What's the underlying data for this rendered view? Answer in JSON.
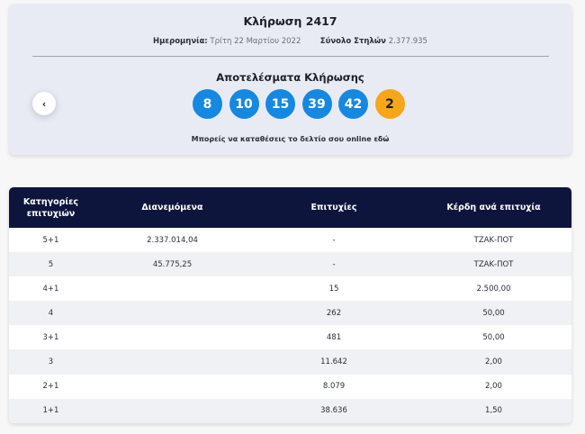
{
  "draw": {
    "title": "Κλήρωση 2417",
    "date_label": "Ημερομηνία:",
    "date_value": "Τρίτη 22 Μαρτίου 2022",
    "columns_label": "Σύνολο Στηλών",
    "columns_value": "2.377.935",
    "results_title": "Αποτελέσματα Κλήρωσης",
    "balls": [
      "8",
      "10",
      "15",
      "39",
      "42"
    ],
    "joker": "2",
    "online_text": "Μπορείς να καταθέσεις το δελτίο σου online ",
    "online_link": "εδώ",
    "prev_icon": "‹",
    "colors": {
      "ball": "#1688e0",
      "joker": "#f7a61b",
      "header": "#0e153d"
    }
  },
  "table": {
    "headers": [
      "Κατηγορίες επιτυχιών",
      "Διανεμόμενα",
      "Επιτυχίες",
      "Κέρδη ανά επιτυχία"
    ],
    "rows": [
      [
        "5+1",
        "2.337.014,04",
        "-",
        "ΤΖΑΚ-ΠΟΤ"
      ],
      [
        "5",
        "45.775,25",
        "-",
        "ΤΖΑΚ-ΠΟΤ"
      ],
      [
        "4+1",
        "",
        "15",
        "2.500,00"
      ],
      [
        "4",
        "",
        "262",
        "50,00"
      ],
      [
        "3+1",
        "",
        "481",
        "50,00"
      ],
      [
        "3",
        "",
        "11.642",
        "2,00"
      ],
      [
        "2+1",
        "",
        "8.079",
        "2,00"
      ],
      [
        "1+1",
        "",
        "38.636",
        "1,50"
      ]
    ]
  }
}
